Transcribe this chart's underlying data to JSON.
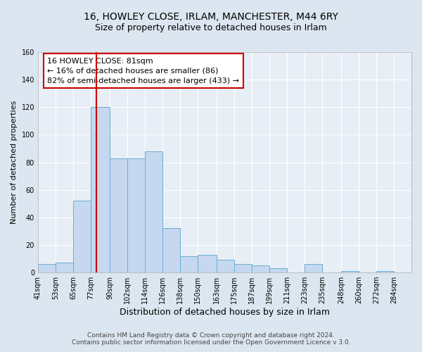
{
  "title_line1": "16, HOWLEY CLOSE, IRLAM, MANCHESTER, M44 6RY",
  "title_line2": "Size of property relative to detached houses in Irlam",
  "xlabel": "Distribution of detached houses by size in Irlam",
  "ylabel": "Number of detached properties",
  "bin_labels": [
    "41sqm",
    "53sqm",
    "65sqm",
    "77sqm",
    "90sqm",
    "102sqm",
    "114sqm",
    "126sqm",
    "138sqm",
    "150sqm",
    "163sqm",
    "175sqm",
    "187sqm",
    "199sqm",
    "211sqm",
    "223sqm",
    "235sqm",
    "248sqm",
    "260sqm",
    "272sqm",
    "284sqm"
  ],
  "bin_edges": [
    41,
    53,
    65,
    77,
    90,
    102,
    114,
    126,
    138,
    150,
    163,
    175,
    187,
    199,
    211,
    223,
    235,
    248,
    260,
    272,
    284,
    296
  ],
  "bar_heights": [
    6,
    7,
    52,
    120,
    83,
    83,
    88,
    32,
    12,
    13,
    9,
    6,
    5,
    3,
    0,
    6,
    0,
    1,
    0,
    1,
    0
  ],
  "bar_color": "#c5d8ef",
  "bar_edgecolor": "#6aaed6",
  "vline_x": 81,
  "vline_color": "#cc0000",
  "annotation_line1": "16 HOWLEY CLOSE: 81sqm",
  "annotation_line2": "← 16% of detached houses are smaller (86)",
  "annotation_line3": "82% of semi-detached houses are larger (433) →",
  "ylim": [
    0,
    160
  ],
  "yticks": [
    0,
    20,
    40,
    60,
    80,
    100,
    120,
    140,
    160
  ],
  "footer_line1": "Contains HM Land Registry data © Crown copyright and database right 2024.",
  "footer_line2": "Contains public sector information licensed under the Open Government Licence v 3.0.",
  "bg_color": "#dce6f0",
  "plot_bg_color": "#e8eef6",
  "grid_color": "#ffffff",
  "title_fontsize": 10,
  "subtitle_fontsize": 9,
  "annotation_fontsize": 8,
  "ylabel_fontsize": 8,
  "xlabel_fontsize": 9,
  "tick_fontsize": 7,
  "footer_fontsize": 6.5
}
